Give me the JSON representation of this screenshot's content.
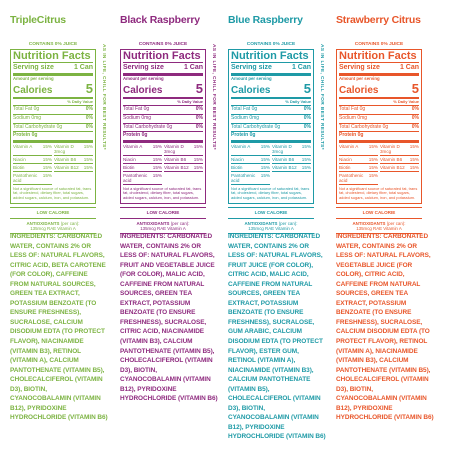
{
  "side_text": "AS IN LIFE, CHILL FOR BEST RESULTS*",
  "label": {
    "contains": "CONTAINS 0% JUICE",
    "title": "Nutrition Facts",
    "serving_label": "Serving size",
    "serving_value": "1 Can",
    "amount": "Amount per serving",
    "calories_label": "Calories",
    "calories_value": "5",
    "daily_value": "% Daily Value",
    "nutrients": [
      {
        "name": "Total Fat 0g",
        "dv": "0%"
      },
      {
        "name": "Sodium 0mg",
        "dv": "0%"
      },
      {
        "name": "Total Carbohydrate 0g",
        "dv": "0%"
      },
      {
        "name": "Protein 0g",
        "dv": null
      }
    ],
    "vitamins": [
      {
        "name": "Vitamin A",
        "dv": "15%"
      },
      {
        "name": "Vitamin D 3mcg",
        "dv": "15%"
      },
      {
        "name": "Niacin",
        "dv": "15%"
      },
      {
        "name": "Vitamin B6",
        "dv": "15%"
      },
      {
        "name": "Biotin",
        "dv": "15%"
      },
      {
        "name": "Vitamin B12",
        "dv": "15%"
      },
      {
        "name": "Pantothenic acid",
        "dv": "15%"
      }
    ],
    "footnote": "Not a significant source of saturated fat, trans fat, cholesterol, dietary fiber, total sugars, added sugars, calcium, iron, and potassium.",
    "low_calorie": "LOW CALORIE",
    "antioxidants_title": "ANTIOXIDANTS",
    "antioxidants_unit": "(per can):",
    "antioxidants_value": "135mcg RAE Vitamin A"
  },
  "products": [
    {
      "name": "TripleCitrus",
      "color": "#7cb342",
      "side": true,
      "ingredients": "INGREDIENTS: CARBONATED WATER, CONTAINS 2% OR LESS OF: NATURAL FLAVORS, CITRIC ACID, BETA CAROTENE (FOR COLOR), CAFFEINE FROM NATURAL SOURCES, GREEN TEA EXTRACT, POTASSIUM BENZOATE (TO ENSURE FRESHNESS), SUCRALOSE, CALCIUM DISODIUM EDTA (TO PROTECT FLAVOR), NIACINAMIDE (VITAMIN B3), RETINOL (VITAMIN A), CALCIUM PANTOTHENATE (VITAMIN B5), CHOLECALCIFEROL (VITAMIN D3), BIOTIN, CYANOCOBALAMIN (VITAMIN B12), PYRIDOXINE HYDROCHLORIDE (VITAMIN B6)"
    },
    {
      "name": "Black Raspberry",
      "color": "#8e2a7e",
      "side": true,
      "ingredients": "INGREDIENTS: CARBONATED WATER, CONTAINS 2% OR LESS OF: NATURAL FLAVORS, FRUIT AND VEGETABLE JUICE (FOR COLOR), MALIC ACID, CAFFEINE FROM NATURAL SOURCES, GREEN TEA EXTRACT, POTASSIUM BENZOATE (TO ENSURE FRESHNESS), SUCRALOSE, CITRIC ACID, NIACINAMIDE (VITAMIN B3), CALCIUM PANTOTHENATE (VITAMIN B5), CHOLECALCIFEROL (VITAMIN D3), BIOTIN, CYANOCOBALAMIN (VITAMIN B12), PYRIDOXINE HYDROCHLORIDE (VITAMIN B6)"
    },
    {
      "name": "Blue Raspberry",
      "color": "#1e9aa6",
      "side": true,
      "ingredients": "INGREDIENTS: CARBONATED WATER, CONTAINS 2% OR LESS OF: NATURAL FLAVORS, FRUIT JUICE (FOR COLOR), CITRIC ACID, MALIC ACID, CAFFEINE FROM NATURAL SOURCES, GREEN TEA EXTRACT, POTASSIUM BENZOATE (TO ENSURE FRESHNESS), SUCRALOSE, GUM ARABIC, CALCIUM DISODIUM EDTA (TO PROTECT FLAVOR), ESTER GUM, RETINOL (VITAMIN A), NIACINAMIDE (VITAMIN B3), CALCIUM PANTOTHENATE (VITAMIN B5), CHOLECALCIFEROL (VITAMIN D3), BIOTIN, CYANOCOBALAMIN (VITAMIN B12), PYRIDOXINE HYDROCHLORIDE (VITAMIN B6)"
    },
    {
      "name": "Strawberry Citrus",
      "color": "#e8562a",
      "side": false,
      "ingredients": "INGREDIENTS: CARBONATED WATER, CONTAINS 2% OR LESS OF: NATURAL FLAVORS, VEGETABLE JUICE (FOR COLOR), CITRIC ACID, CAFFEINE FROM NATURAL SOURCES, GREEN TEA EXTRACT, POTASSIUM BENZOATE (TO ENSURE FRESHNESS), SUCRALOSE, CALCIUM DISODIUM EDTA (TO PROTECT FLAVOR), RETINOL (VITAMIN A), NIACINAMIDE (VITAMIN B3), CALCIUM PANTOTHENATE (VITAMIN B5), CHOLECALCIFEROL (VITAMIN D3), BIOTIN, CYANOCOBALAMIN (VITAMIN B12), PYRIDOXINE HYDROCHLORIDE (VITAMIN B6)"
    }
  ]
}
